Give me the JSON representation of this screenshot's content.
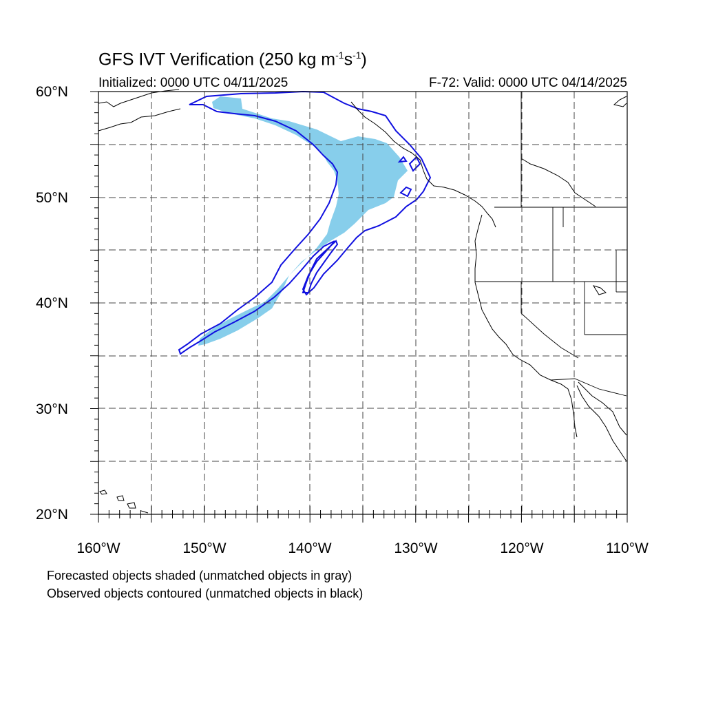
{
  "title": {
    "text": "GFS IVT Verification (250 kg m",
    "sup1": "-1",
    "mid": "s",
    "sup2": "-1",
    "end": ")"
  },
  "initialized": "Initialized: 0000 UTC 04/11/2025",
  "valid": "F-72: Valid: 0000 UTC 04/14/2025",
  "lat_labels": [
    "60°N",
    "50°N",
    "40°N",
    "30°N",
    "20°N"
  ],
  "lon_labels": [
    "160°W",
    "150°W",
    "140°W",
    "130°W",
    "120°W",
    "110°W"
  ],
  "captions": [
    "Forecasted objects shaded (unmatched objects in gray)",
    "Observed objects contoured (unmatched objects in black)"
  ],
  "colors": {
    "forecast_fill": "#87ceeb",
    "observed_contour": "#1010e0",
    "coast": "#000000",
    "grid": "#444444"
  },
  "map": {
    "projection": "cylindrical-equidistant",
    "lat_range": [
      20,
      60
    ],
    "lon_range": [
      -160,
      -110
    ],
    "grid_spacing_deg": 5
  }
}
